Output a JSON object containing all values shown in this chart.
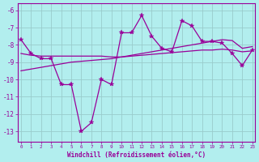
{
  "background_color": "#b2eeee",
  "line_color": "#990099",
  "grid_color": "#99cccc",
  "xlim_min": -0.3,
  "xlim_max": 23.3,
  "ylim_min": -13.6,
  "ylim_max": -5.6,
  "yticks": [
    -6,
    -7,
    -8,
    -9,
    -10,
    -11,
    -12,
    -13
  ],
  "xticks": [
    0,
    1,
    2,
    3,
    4,
    5,
    6,
    7,
    8,
    9,
    10,
    11,
    12,
    13,
    14,
    15,
    16,
    17,
    18,
    19,
    20,
    21,
    22,
    23
  ],
  "hours": [
    0,
    1,
    2,
    3,
    4,
    5,
    6,
    7,
    8,
    9,
    10,
    11,
    12,
    13,
    14,
    15,
    16,
    17,
    18,
    19,
    20,
    21,
    22,
    23
  ],
  "line_jagged": [
    -7.7,
    -8.5,
    -8.8,
    -8.8,
    -10.3,
    -10.3,
    -13.0,
    -12.5,
    -10.0,
    -10.3,
    -7.3,
    -7.3,
    -6.3,
    -7.5,
    -8.2,
    -8.4,
    -6.6,
    -6.9,
    -7.8,
    -7.8,
    -7.9,
    -8.5,
    -9.2,
    -8.3
  ],
  "line_flat": [
    -8.5,
    -8.6,
    -8.65,
    -8.65,
    -8.65,
    -8.65,
    -8.65,
    -8.65,
    -8.65,
    -8.7,
    -8.7,
    -8.65,
    -8.6,
    -8.55,
    -8.5,
    -8.45,
    -8.4,
    -8.35,
    -8.3,
    -8.3,
    -8.25,
    -8.3,
    -8.4,
    -8.35
  ],
  "line_rising": [
    -9.5,
    -9.4,
    -9.3,
    -9.2,
    -9.1,
    -9.0,
    -8.95,
    -8.9,
    -8.85,
    -8.8,
    -8.7,
    -8.6,
    -8.5,
    -8.4,
    -8.3,
    -8.2,
    -8.1,
    -8.0,
    -7.9,
    -7.8,
    -7.7,
    -7.75,
    -8.2,
    -8.1
  ],
  "xlabel": "Windchill (Refroidissement éolien,°C)",
  "spine_color": "#990099"
}
